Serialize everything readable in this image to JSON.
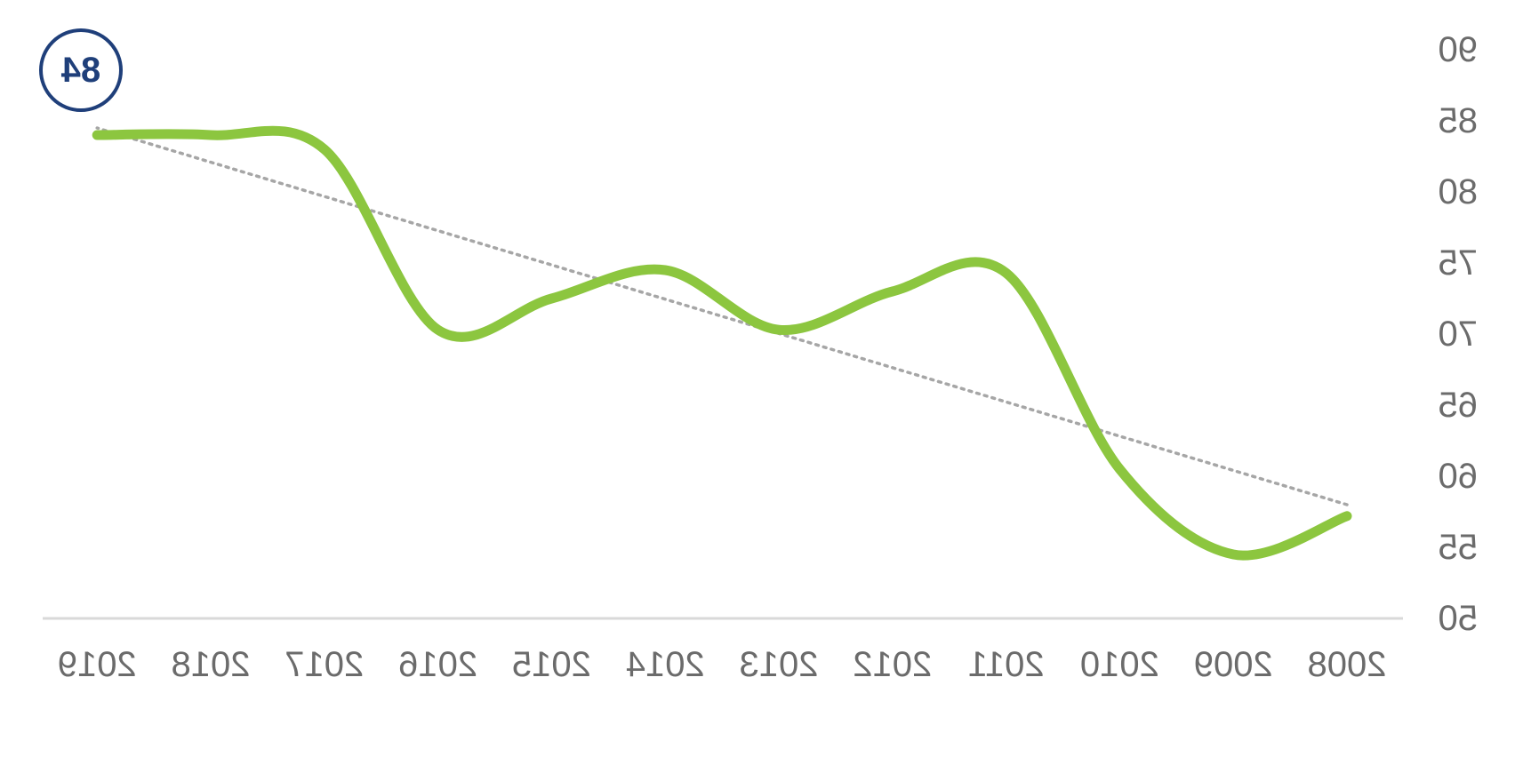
{
  "chart_data": {
    "type": "line",
    "mirrored": true,
    "categories": [
      "2008",
      "2009",
      "2010",
      "2011",
      "2012",
      "2013",
      "2014",
      "2015",
      "2016",
      "2017",
      "2018",
      "2019"
    ],
    "series": [
      {
        "values": [
          57.2,
          54.5,
          60.5,
          74.3,
          73.0,
          70.3,
          74.5,
          72.5,
          70.3,
          83.0,
          84.0,
          84.0
        ],
        "color": "#8CC63F"
      }
    ],
    "trendline": {
      "style": "dotted",
      "color": "#A6A6A6",
      "from": 58.0,
      "to": 84.5
    },
    "ylim": [
      50,
      90
    ],
    "yticks": [
      "50",
      "55",
      "60",
      "65",
      "70",
      "75",
      "80",
      "85",
      "90"
    ],
    "grid": false,
    "axis_color": "#D9D9D9",
    "label_color": "#6B6B6B",
    "callout": {
      "text": "84",
      "color": "#1F3F7A"
    }
  }
}
